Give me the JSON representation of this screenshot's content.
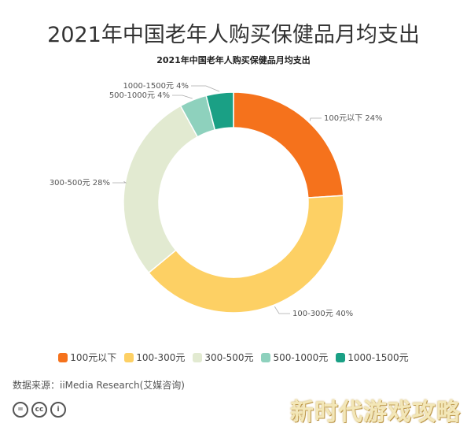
{
  "header": {
    "main_title": "2021年中国老年人购买保健品月均支出"
  },
  "chart_data": {
    "type": "pie",
    "title": "2021年中国老年人购买保健品月均支出",
    "categories": [
      "100元以下",
      "100-300元",
      "300-500元",
      "500-1000元",
      "1000-1500元"
    ],
    "values": [
      24,
      40,
      28,
      4,
      4
    ],
    "unit": "%",
    "colors": [
      "#f5721c",
      "#fdd064",
      "#e2ead1",
      "#8ed1bd",
      "#1aa085"
    ],
    "slice_labels": [
      "100元以下 24%",
      "100-300元 40%",
      "300-500元 28%",
      "500-1000元 4%",
      "1000-1500元 4%"
    ],
    "legend_position": "bottom"
  },
  "footer": {
    "source": "数据来源：iiMedia Research(艾媒咨询)",
    "badges": [
      "=",
      "cc",
      "i"
    ],
    "watermark": "新时代游戏攻略"
  }
}
